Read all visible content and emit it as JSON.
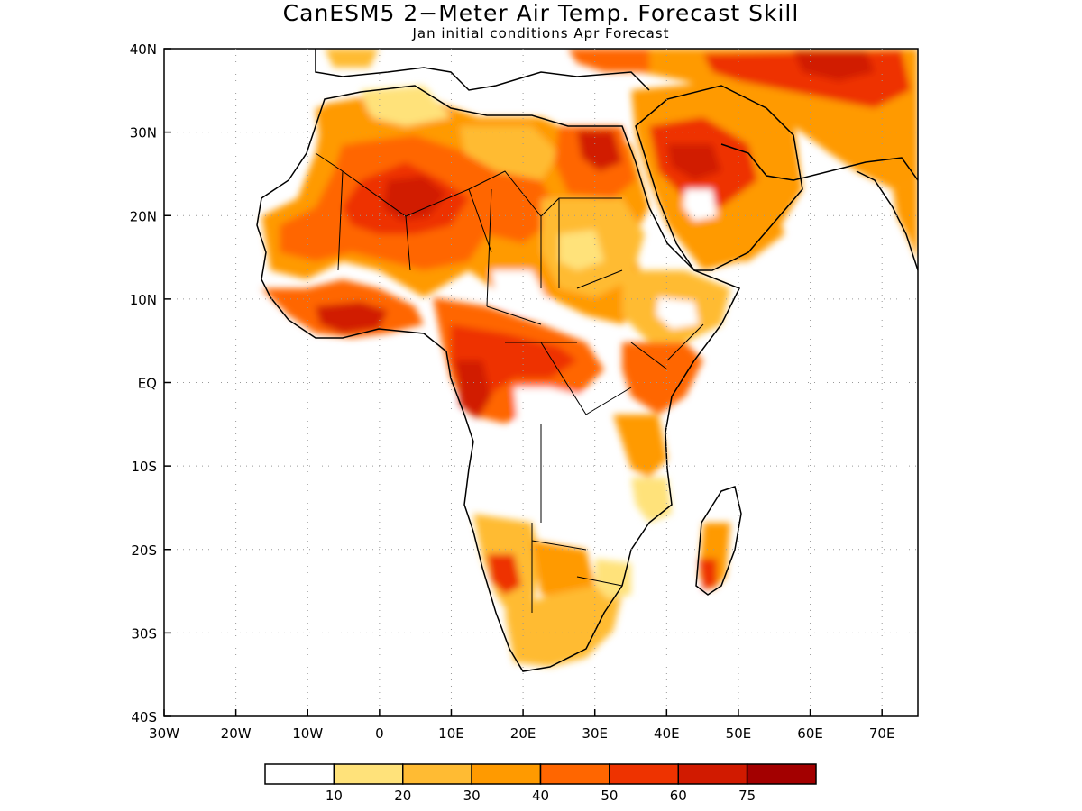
{
  "title": "CanESM5 2−Meter Air Temp. Forecast Skill",
  "subtitle": "Jan initial conditions  Apr Forecast",
  "map": {
    "lon_range": [
      -30,
      75
    ],
    "lat_range": [
      -40,
      40
    ],
    "x_ticks": [
      {
        "lon": -30,
        "label": "30W"
      },
      {
        "lon": -20,
        "label": "20W"
      },
      {
        "lon": -10,
        "label": "10W"
      },
      {
        "lon": 0,
        "label": "0"
      },
      {
        "lon": 10,
        "label": "10E"
      },
      {
        "lon": 20,
        "label": "20E"
      },
      {
        "lon": 30,
        "label": "30E"
      },
      {
        "lon": 40,
        "label": "40E"
      },
      {
        "lon": 50,
        "label": "50E"
      },
      {
        "lon": 60,
        "label": "60E"
      },
      {
        "lon": 70,
        "label": "70E"
      }
    ],
    "y_ticks": [
      {
        "lat": 40,
        "label": "40N"
      },
      {
        "lat": 30,
        "label": "30N"
      },
      {
        "lat": 20,
        "label": "20N"
      },
      {
        "lat": 10,
        "label": "10N"
      },
      {
        "lat": 0,
        "label": "EQ"
      },
      {
        "lat": -10,
        "label": "10S"
      },
      {
        "lat": -20,
        "label": "20S"
      },
      {
        "lat": -30,
        "label": "30S"
      },
      {
        "lat": -40,
        "label": "40S"
      }
    ],
    "grid": "dotted"
  },
  "colorbar": {
    "labels": [
      "10",
      "20",
      "30",
      "40",
      "50",
      "60",
      "75"
    ],
    "colors": [
      "#ffffff",
      "#ffe27a",
      "#ffbb33",
      "#ff9a00",
      "#ff6600",
      "#ee3300",
      "#d11a00",
      "#a30000"
    ]
  },
  "chart_data": {
    "type": "heatmap",
    "variable": "2-meter air temperature forecast skill",
    "x": "longitude",
    "y": "latitude",
    "xlim": [
      -30,
      75
    ],
    "ylim": [
      -40,
      40
    ],
    "levels": [
      10,
      20,
      30,
      40,
      50,
      60,
      75
    ],
    "regions": [
      {
        "lon": [
          -15,
          -5
        ],
        "lat": [
          8,
          25
        ],
        "value": 45
      },
      {
        "lon": [
          -5,
          12
        ],
        "lat": [
          15,
          27
        ],
        "value": 55
      },
      {
        "lon": [
          2,
          10
        ],
        "lat": [
          20,
          25
        ],
        "value": 65
      },
      {
        "lon": [
          -10,
          2
        ],
        "lat": [
          5,
          10
        ],
        "value": 55
      },
      {
        "lon": [
          10,
          30
        ],
        "lat": [
          0,
          8
        ],
        "value": 55
      },
      {
        "lon": [
          30,
          36
        ],
        "lat": [
          25,
          31
        ],
        "value": 55
      },
      {
        "lon": [
          36,
          50
        ],
        "lat": [
          15,
          30
        ],
        "value": 50
      },
      {
        "lon": [
          40,
          45
        ],
        "lat": [
          24,
          27
        ],
        "value": 65
      },
      {
        "lon": [
          45,
          75
        ],
        "lat": [
          30,
          40
        ],
        "value": 55
      },
      {
        "lon": [
          15,
          20
        ],
        "lat": [
          -28,
          -18
        ],
        "value": 50
      },
      {
        "lon": [
          44,
          46
        ],
        "lat": [
          -24,
          -22
        ],
        "value": 55
      },
      {
        "lon": [
          38,
          45
        ],
        "lat": [
          -5,
          5
        ],
        "value": 45
      }
    ]
  }
}
